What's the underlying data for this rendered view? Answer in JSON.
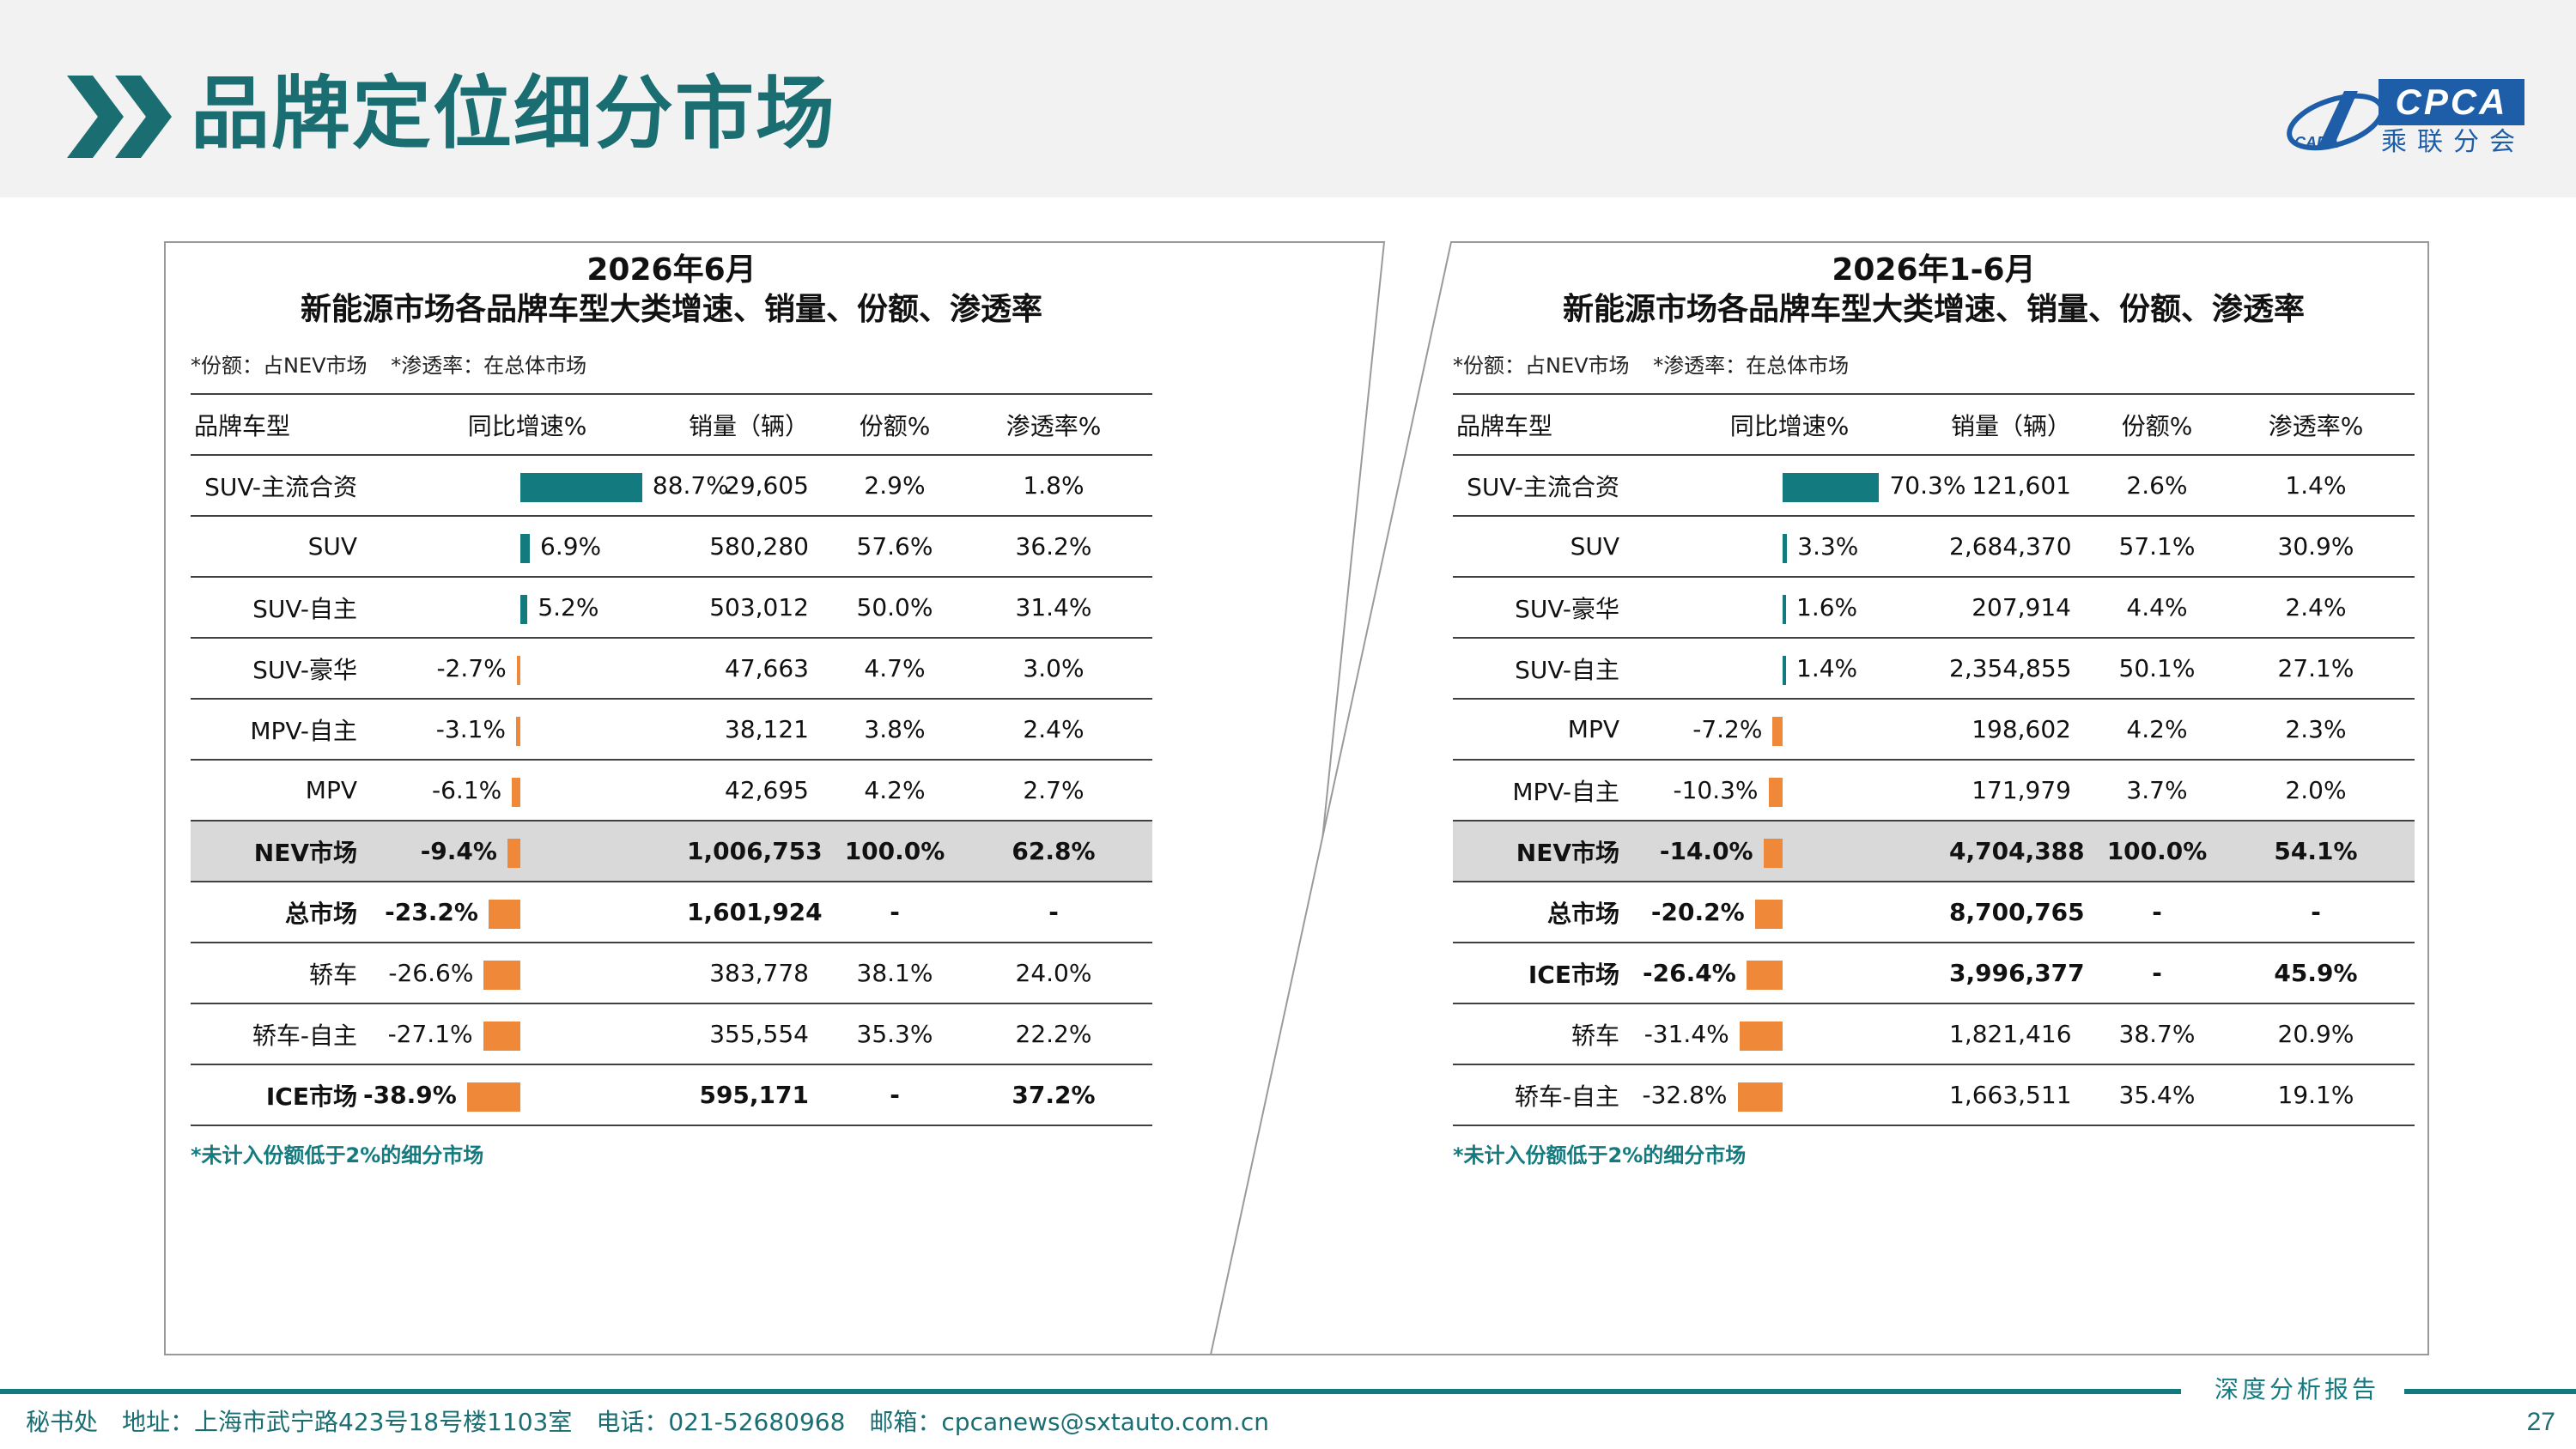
{
  "header": {
    "title": "品牌定位细分市场",
    "logo_text": "CPCA",
    "logo_sub": "乘联分会",
    "logo_small": "CADA"
  },
  "colors": {
    "accent": "#137a7f",
    "negative": "#f0883a",
    "highlight_row": "#d9d9d9",
    "logo": "#1e5ea8"
  },
  "columns": {
    "name": "品牌车型",
    "growth": "同比增速%",
    "sales": "销量（辆）",
    "share": "份额%",
    "penetration": "渗透率%"
  },
  "left_panel": {
    "title_line1": "2026年6月",
    "title_line2": "新能源市场各品牌车型大类增速、销量、份额、渗透率",
    "note1": "*份额：占NEV市场",
    "note2": "*渗透率：在总体市场",
    "footnote": "*未计入份额低于2%的细分市场",
    "rows": [
      {
        "name": "SUV-主流合资",
        "growth": 88.7,
        "growth_label": "88.7%",
        "sales": "29,605",
        "share": "2.9%",
        "penetration": "1.8%",
        "style": ""
      },
      {
        "name": "SUV",
        "growth": 6.9,
        "growth_label": "6.9%",
        "sales": "580,280",
        "share": "57.6%",
        "penetration": "36.2%",
        "style": ""
      },
      {
        "name": "SUV-自主",
        "growth": 5.2,
        "growth_label": "5.2%",
        "sales": "503,012",
        "share": "50.0%",
        "penetration": "31.4%",
        "style": ""
      },
      {
        "name": "SUV-豪华",
        "growth": -2.7,
        "growth_label": "-2.7%",
        "sales": "47,663",
        "share": "4.7%",
        "penetration": "3.0%",
        "style": ""
      },
      {
        "name": "MPV-自主",
        "growth": -3.1,
        "growth_label": "-3.1%",
        "sales": "38,121",
        "share": "3.8%",
        "penetration": "2.4%",
        "style": ""
      },
      {
        "name": "MPV",
        "growth": -6.1,
        "growth_label": "-6.1%",
        "sales": "42,695",
        "share": "4.2%",
        "penetration": "2.7%",
        "style": ""
      },
      {
        "name": "NEV市场",
        "growth": -9.4,
        "growth_label": "-9.4%",
        "sales": "1,006,753",
        "share": "100.0%",
        "penetration": "62.8%",
        "style": "nev"
      },
      {
        "name": "总市场",
        "growth": -23.2,
        "growth_label": "-23.2%",
        "sales": "1,601,924",
        "share": "-",
        "penetration": "-",
        "style": "bold"
      },
      {
        "name": "轿车",
        "growth": -26.6,
        "growth_label": "-26.6%",
        "sales": "383,778",
        "share": "38.1%",
        "penetration": "24.0%",
        "style": ""
      },
      {
        "name": "轿车-自主",
        "growth": -27.1,
        "growth_label": "-27.1%",
        "sales": "355,554",
        "share": "35.3%",
        "penetration": "22.2%",
        "style": ""
      },
      {
        "name": "ICE市场",
        "growth": -38.9,
        "growth_label": "-38.9%",
        "sales": "595,171",
        "share": "-",
        "penetration": "37.2%",
        "style": "bold"
      }
    ]
  },
  "right_panel": {
    "title_line1": "2026年1-6月",
    "title_line2": "新能源市场各品牌车型大类增速、销量、份额、渗透率",
    "note1": "*份额：占NEV市场",
    "note2": "*渗透率：在总体市场",
    "footnote": "*未计入份额低于2%的细分市场",
    "rows": [
      {
        "name": "SUV-主流合资",
        "growth": 70.3,
        "growth_label": "70.3%",
        "sales": "121,601",
        "share": "2.6%",
        "penetration": "1.4%",
        "style": ""
      },
      {
        "name": "SUV",
        "growth": 3.3,
        "growth_label": "3.3%",
        "sales": "2,684,370",
        "share": "57.1%",
        "penetration": "30.9%",
        "style": ""
      },
      {
        "name": "SUV-豪华",
        "growth": 1.6,
        "growth_label": "1.6%",
        "sales": "207,914",
        "share": "4.4%",
        "penetration": "2.4%",
        "style": ""
      },
      {
        "name": "SUV-自主",
        "growth": 1.4,
        "growth_label": "1.4%",
        "sales": "2,354,855",
        "share": "50.1%",
        "penetration": "27.1%",
        "style": ""
      },
      {
        "name": "MPV",
        "growth": -7.2,
        "growth_label": "-7.2%",
        "sales": "198,602",
        "share": "4.2%",
        "penetration": "2.3%",
        "style": ""
      },
      {
        "name": "MPV-自主",
        "growth": -10.3,
        "growth_label": "-10.3%",
        "sales": "171,979",
        "share": "3.7%",
        "penetration": "2.0%",
        "style": ""
      },
      {
        "name": "NEV市场",
        "growth": -14.0,
        "growth_label": "-14.0%",
        "sales": "4,704,388",
        "share": "100.0%",
        "penetration": "54.1%",
        "style": "nev"
      },
      {
        "name": "总市场",
        "growth": -20.2,
        "growth_label": "-20.2%",
        "sales": "8,700,765",
        "share": "-",
        "penetration": "-",
        "style": "bold"
      },
      {
        "name": "ICE市场",
        "growth": -26.4,
        "growth_label": "-26.4%",
        "sales": "3,996,377",
        "share": "-",
        "penetration": "45.9%",
        "style": "bold"
      },
      {
        "name": "轿车",
        "growth": -31.4,
        "growth_label": "-31.4%",
        "sales": "1,821,416",
        "share": "38.7%",
        "penetration": "20.9%",
        "style": ""
      },
      {
        "name": "轿车-自主",
        "growth": -32.8,
        "growth_label": "-32.8%",
        "sales": "1,663,511",
        "share": "35.4%",
        "penetration": "19.1%",
        "style": ""
      }
    ]
  },
  "footer": {
    "address": "秘书处　地址：上海市武宁路423号18号楼1103室　电话：021-52680968　邮箱：cpcanews@sxtauto.com.cn",
    "tag": "深度分析报告",
    "page": "27"
  }
}
